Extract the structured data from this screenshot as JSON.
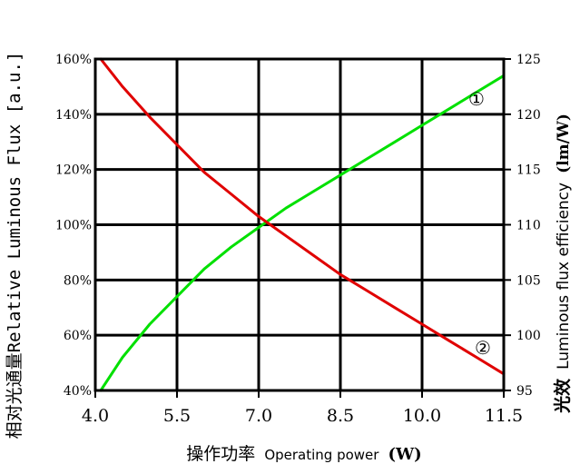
{
  "chart_data": {
    "type": "line",
    "xlabel_cn": "操作功率",
    "xlabel_en": "Operating power",
    "xlabel_unit": "(W)",
    "ylabel_left": "相对光通量Relative Luminous Flux [a.u.]",
    "ylabel_right_cn": "光效",
    "ylabel_right_en": "Luminous flux efficiency",
    "ylabel_right_unit": "(lm/W)",
    "x_ticks": [
      "4.0",
      "5.5",
      "7.0",
      "8.5",
      "10.0",
      "11.5"
    ],
    "x_tick_values": [
      4.0,
      5.5,
      7.0,
      8.5,
      10.0,
      11.5
    ],
    "xlim": [
      4.0,
      11.5
    ],
    "y_left_ticks": [
      "40%",
      "60%",
      "80%",
      "100%",
      "120%",
      "140%",
      "160%"
    ],
    "y_left_tick_values": [
      40,
      60,
      80,
      100,
      120,
      140,
      160
    ],
    "ylim_left": [
      40,
      160
    ],
    "y_right_ticks": [
      "95",
      "100",
      "105",
      "110",
      "115",
      "120",
      "125"
    ],
    "y_right_tick_values": [
      95,
      100,
      105,
      110,
      115,
      120,
      125
    ],
    "ylim_right": [
      95,
      125
    ],
    "grid": true,
    "series": [
      {
        "name": "①",
        "color": "#00e000",
        "axis": "left",
        "x": [
          4.1,
          4.5,
          5.0,
          5.5,
          6.0,
          6.5,
          7.0,
          7.5,
          8.0,
          8.5,
          9.0,
          9.5,
          10.0,
          10.5,
          11.0,
          11.5
        ],
        "y": [
          40,
          52,
          64,
          74,
          84,
          92,
          99,
          106,
          112,
          118,
          124,
          130,
          136,
          142,
          148,
          154
        ]
      },
      {
        "name": "②",
        "color": "#e00000",
        "axis": "left",
        "x": [
          4.1,
          4.5,
          5.0,
          5.5,
          6.0,
          6.5,
          7.0,
          7.5,
          8.0,
          8.5,
          9.0,
          9.5,
          10.0,
          10.5,
          11.0,
          11.5
        ],
        "y": [
          160,
          150,
          139,
          129,
          119,
          111,
          103,
          96,
          89,
          82,
          76,
          70,
          64,
          58,
          52,
          46
        ]
      }
    ]
  }
}
